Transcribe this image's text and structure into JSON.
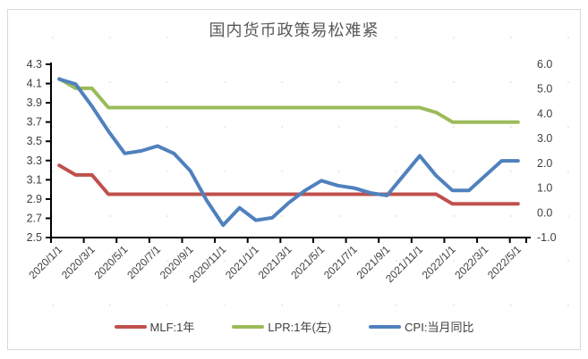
{
  "title": "国内货币政策易松难紧",
  "colors": {
    "mlf": "#c0504d",
    "lpr": "#9bbb59",
    "cpi": "#4f81bd",
    "axis_line": "#000000",
    "axis_text": "#404040",
    "title_text": "#595959",
    "frame_border": "#d9d9d9"
  },
  "chart_data": {
    "type": "line",
    "title": "国内货币政策易松难紧",
    "xlabel": "",
    "ylabel_left": "",
    "ylabel_right": "",
    "grid": false,
    "legend_position": "bottom",
    "x_categories": [
      "2020/1",
      "2020/2",
      "2020/3",
      "2020/4",
      "2020/5",
      "2020/6",
      "2020/7",
      "2020/8",
      "2020/9",
      "2020/10",
      "2020/11",
      "2020/12",
      "2021/1",
      "2021/2",
      "2021/3",
      "2021/4",
      "2021/5",
      "2021/6",
      "2021/7",
      "2021/8",
      "2021/9",
      "2021/10",
      "2021/11",
      "2021/12",
      "2022/1",
      "2022/2",
      "2022/3",
      "2022/4",
      "2022/5"
    ],
    "x_tick_labels": [
      "2020/1/1",
      "2020/3/1",
      "2020/5/1",
      "2020/7/1",
      "2020/9/1",
      "2020/11/1",
      "2021/1/1",
      "2021/3/1",
      "2021/5/1",
      "2021/7/1",
      "2021/9/1",
      "2021/11/1",
      "2022/1/1",
      "2022/3/1",
      "2022/5/1"
    ],
    "axes": {
      "left": {
        "min": 2.5,
        "max": 4.3,
        "tick_labels": [
          "4.3",
          "4.1",
          "3.9",
          "3.7",
          "3.5",
          "3.3",
          "3.1",
          "2.9",
          "2.7",
          "2.5"
        ]
      },
      "right": {
        "min": -1.0,
        "max": 6.0,
        "tick_labels": [
          "6.0",
          "5.0",
          "4.0",
          "3.0",
          "2.0",
          "1.0",
          "0.0",
          "-1.0"
        ]
      }
    },
    "series": [
      {
        "name": "MLF:1年",
        "axis": "left",
        "color": "#c0504d",
        "values": [
          3.25,
          3.15,
          3.15,
          2.95,
          2.95,
          2.95,
          2.95,
          2.95,
          2.95,
          2.95,
          2.95,
          2.95,
          2.95,
          2.95,
          2.95,
          2.95,
          2.95,
          2.95,
          2.95,
          2.95,
          2.95,
          2.95,
          2.95,
          2.95,
          2.85,
          2.85,
          2.85,
          2.85,
          2.85
        ]
      },
      {
        "name": "LPR:1年(左)",
        "axis": "left",
        "color": "#9bbb59",
        "values": [
          4.15,
          4.05,
          4.05,
          3.85,
          3.85,
          3.85,
          3.85,
          3.85,
          3.85,
          3.85,
          3.85,
          3.85,
          3.85,
          3.85,
          3.85,
          3.85,
          3.85,
          3.85,
          3.85,
          3.85,
          3.85,
          3.85,
          3.85,
          3.8,
          3.7,
          3.7,
          3.7,
          3.7,
          3.7
        ]
      },
      {
        "name": "CPI:当月同比",
        "axis": "right",
        "color": "#4f81bd",
        "values": [
          5.4,
          5.2,
          4.3,
          3.3,
          2.4,
          2.5,
          2.7,
          2.4,
          1.7,
          0.5,
          -0.5,
          0.2,
          -0.3,
          -0.2,
          0.4,
          0.9,
          1.3,
          1.1,
          1.0,
          0.8,
          0.7,
          1.5,
          2.3,
          1.5,
          0.9,
          0.9,
          1.5,
          2.1,
          2.1
        ]
      }
    ]
  }
}
